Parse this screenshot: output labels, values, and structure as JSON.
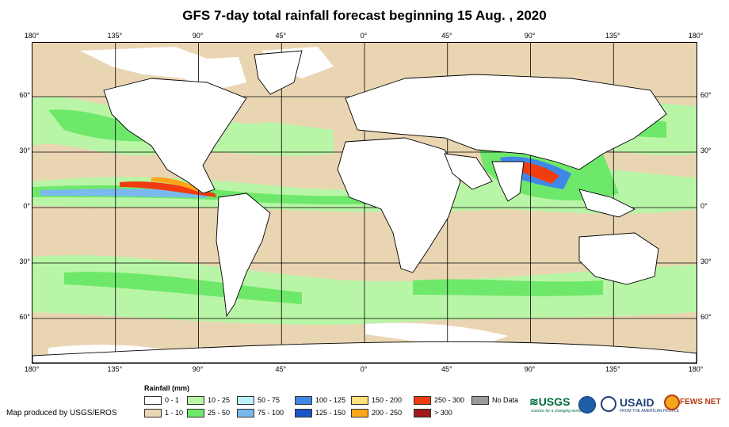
{
  "title": "GFS 7-day total rainfall forecast beginning 15 Aug. , 2020",
  "lon_labels": [
    "180°",
    "135°",
    "90°",
    "45°",
    "0°",
    "45°",
    "90°",
    "135°",
    "180°"
  ],
  "lat_labels_left": [
    "60°",
    "30°",
    "0°",
    "30°",
    "60°"
  ],
  "lat_labels_right": [
    "60°",
    "30°",
    "0°",
    "30°",
    "60°"
  ],
  "legend": {
    "title": "Rainfall (mm)",
    "items": [
      {
        "label": "0 - 1",
        "color": "#ffffff"
      },
      {
        "label": "1 - 10",
        "color": "#ead5b3"
      },
      {
        "label": "10 - 25",
        "color": "#b9f5a6"
      },
      {
        "label": "25 - 50",
        "color": "#6ee86a"
      },
      {
        "label": "50 - 75",
        "color": "#bdeefa"
      },
      {
        "label": "75 - 100",
        "color": "#7ab9ee"
      },
      {
        "label": "100 - 125",
        "color": "#3f88e8"
      },
      {
        "label": "125 - 150",
        "color": "#1d53c8"
      },
      {
        "label": "150 - 200",
        "color": "#ffe07a"
      },
      {
        "label": "200 - 250",
        "color": "#ffa51a"
      },
      {
        "label": "250 - 300",
        "color": "#f03c0f"
      },
      {
        "label": "> 300",
        "color": "#a11a1a"
      },
      {
        "label": "No Data",
        "color": "#9a9a9a"
      }
    ]
  },
  "credit": "Map produced by USGS/EROS",
  "logos": {
    "usgs": "USGS",
    "usgs_tagline": "science for a changing world",
    "usaid": "USAID",
    "usaid_tagline": "FROM THE AMERICAN PEOPLE",
    "fews": "FEWS NET"
  }
}
